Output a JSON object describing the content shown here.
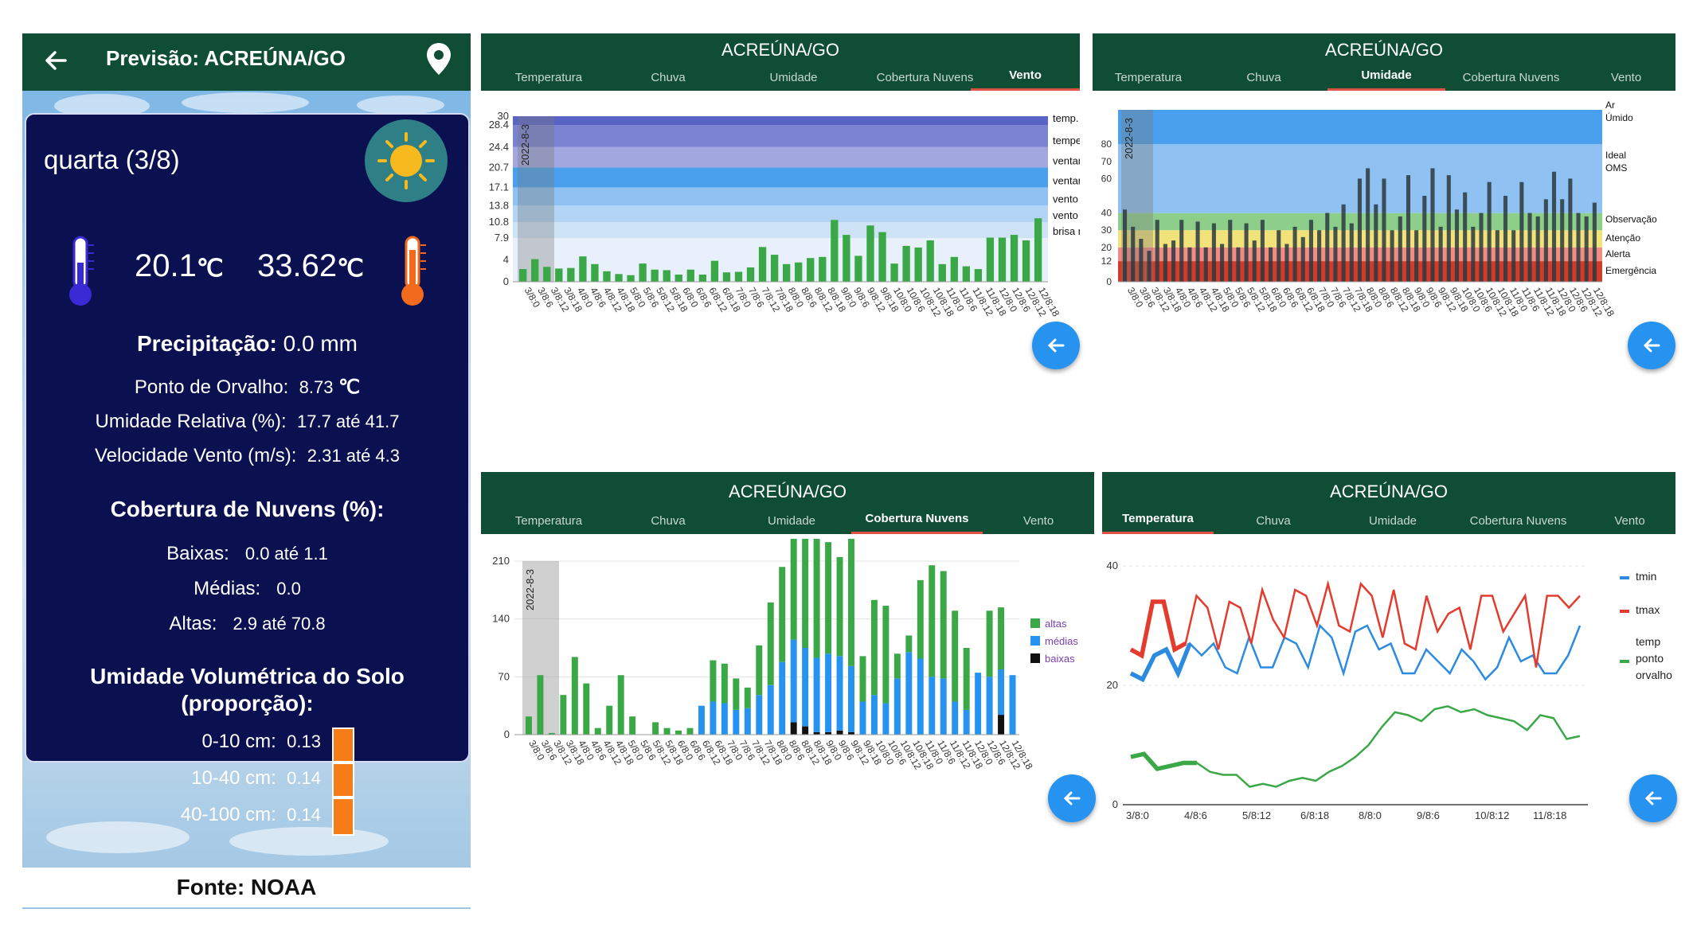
{
  "left": {
    "title": "Previsão: ACREÚNA/GO",
    "day": "quarta (3/8)",
    "tmin": "20.1",
    "tmax": "33.62",
    "temp_unit": "℃",
    "precip_label": "Precipitação:",
    "precip_value": "0.0 mm",
    "dew_label": "Ponto de Orvalho:",
    "dew_value": "8.73",
    "dew_unit": "℃",
    "humidity_label": "Umidade Relativa (%):",
    "humidity_value": "17.7  até  41.7",
    "wind_label": "Velocidade Vento (m/s):",
    "wind_value": "2.31  até  4.3",
    "clouds_title": "Cobertura de Nuvens (%):",
    "low_label": "Baixas:",
    "low_value": "0.0  até  1.1",
    "mid_label": "Médias:",
    "mid_value": "0.0",
    "high_label": "Altas:",
    "high_value": "2.9  até  70.8",
    "soil_title_1": "Umidade Volumétrica do Solo",
    "soil_title_2": "(proporção):",
    "soil": [
      {
        "label": "0-10 cm:",
        "value": "0.13"
      },
      {
        "label": "10-40 cm:",
        "value": "0.14"
      },
      {
        "label": "40-100 cm:",
        "value": "0.14"
      }
    ],
    "source": "Fonte: NOAA"
  },
  "tabs": [
    "Temperatura",
    "Chuva",
    "Umidade",
    "Cobertura Nuvens",
    "Vento"
  ],
  "panel_title": "ACREÚNA/GO",
  "date_marker": "2022-8-3",
  "x_ticks": [
    "3/8:0",
    "3/8:6",
    "3/8:12",
    "3/8:18",
    "4/8:0",
    "4/8:6",
    "4/8:12",
    "4/8:18",
    "5/8:0",
    "5/8:6",
    "5/8:12",
    "5/8:18",
    "6/8:0",
    "6/8:6",
    "6/8:12",
    "6/8:18",
    "7/8:0",
    "7/8:6",
    "7/8:12",
    "7/8:18",
    "8/8:0",
    "8/8:6",
    "8/8:12",
    "8/8:18",
    "9/8:0",
    "9/8:6",
    "9/8:12",
    "9/8:18",
    "10/8:0",
    "10/8:6",
    "10/8:12",
    "10/8:18",
    "11/8:0",
    "11/8:6",
    "11/8:12",
    "11/8:18",
    "12/8:0",
    "12/8:6",
    "12/8:12",
    "12/8:18"
  ],
  "chart_data": [
    {
      "type": "bar",
      "panel": "Vento",
      "active_tab": "Vento",
      "yticks": [
        "0",
        "4",
        "7.9",
        "10.8",
        "13.8",
        "17.1",
        "20.7",
        "24.4",
        "28.4",
        "30"
      ],
      "ylim": [
        0,
        30
      ],
      "bands": [
        {
          "label": "brisa moderada",
          "from": 7.9,
          "to": 10.8,
          "color": "#cfe3f7"
        },
        {
          "label": "vento leve",
          "from": 10.8,
          "to": 13.8,
          "color": "#b3d4f5"
        },
        {
          "label": "vento forte",
          "from": 13.8,
          "to": 17.1,
          "color": "#8fc1f2"
        },
        {
          "label": "ventania",
          "from": 17.1,
          "to": 20.7,
          "color": "#4aa0ec"
        },
        {
          "label": "ventania forte",
          "from": 20.7,
          "to": 24.4,
          "color": "#a2a8df"
        },
        {
          "label": "tempestade",
          "from": 24.4,
          "to": 28.4,
          "color": "#7a83d2"
        },
        {
          "label": "temp. violenta",
          "from": 28.4,
          "to": 30,
          "color": "#5a63c6"
        }
      ],
      "series": [
        {
          "color": "#3aa846",
          "values": [
            2.3,
            4.1,
            2.7,
            2.4,
            2.5,
            4.6,
            3.2,
            1.9,
            1.4,
            1.2,
            3.3,
            2.2,
            2.1,
            1.3,
            2.2,
            1.3,
            3.8,
            1.7,
            1.8,
            2.6,
            6.3,
            4.9,
            3.2,
            3.5,
            4.3,
            4.5,
            11.2,
            8.5,
            4.7,
            10.2,
            9.0,
            3.3,
            6.5,
            6.2,
            7.5,
            3.2,
            4.5,
            2.8,
            2.3,
            8.0,
            8.0,
            8.5,
            7.5,
            11.5
          ]
        }
      ]
    },
    {
      "type": "bar",
      "panel": "Umidade",
      "active_tab": "Umidade",
      "yticks": [
        "0",
        "12",
        "20",
        "30",
        "40",
        "60",
        "70",
        "80"
      ],
      "ylim": [
        0,
        100
      ],
      "bands": [
        {
          "label": "Emergência",
          "from": 0,
          "to": 12,
          "color": "#d23b2a"
        },
        {
          "label": "Alerta",
          "from": 12,
          "to": 20,
          "color": "#f28b83"
        },
        {
          "label": "Atenção",
          "from": 20,
          "to": 30,
          "color": "#f2e27a"
        },
        {
          "label": "Observação",
          "from": 30,
          "to": 40,
          "color": "#8dcf8a"
        },
        {
          "label": "Ideal OMS",
          "from": 40,
          "to": 80,
          "color": "#8fc1f2"
        },
        {
          "label": "Ar Úmido",
          "from": 80,
          "to": 100,
          "color": "#4aa0ec"
        }
      ],
      "series": [
        {
          "color": "#2b3a3f",
          "values": [
            42,
            32,
            25,
            18,
            36,
            22,
            24,
            36,
            20,
            35,
            20,
            34,
            22,
            36,
            20,
            34,
            24,
            36,
            20,
            30,
            22,
            32,
            26,
            36,
            30,
            40,
            32,
            45,
            34,
            60,
            66,
            45,
            60,
            30,
            38,
            62,
            30,
            50,
            66,
            32,
            62,
            42,
            52,
            32,
            40,
            58,
            30,
            50,
            30,
            58,
            40,
            38,
            48,
            64,
            48,
            60,
            40,
            38,
            46
          ]
        }
      ]
    },
    {
      "type": "bar",
      "panel": "Cobertura Nuvens",
      "active_tab": "Cobertura Nuvens",
      "yticks": [
        "0",
        "70",
        "140",
        "210"
      ],
      "ylim": [
        0,
        210
      ],
      "legend": [
        "altas",
        "médias",
        "baixas"
      ],
      "series": [
        {
          "name": "altas",
          "color": "#3aa846",
          "values": [
            22,
            72,
            2,
            48,
            94,
            62,
            8,
            35,
            72,
            22,
            0,
            15,
            8,
            5,
            8,
            0,
            50,
            48,
            38,
            25,
            60,
            100,
            115,
            150,
            175,
            175,
            135,
            120,
            160,
            55,
            115,
            118,
            30,
            20,
            95,
            135,
            130,
            110,
            75,
            0,
            80,
            75,
            0
          ]
        },
        {
          "name": "médias",
          "color": "#2693f0",
          "values": [
            0,
            0,
            0,
            0,
            0,
            0,
            0,
            0,
            0,
            0,
            0,
            0,
            0,
            0,
            0,
            35,
            40,
            38,
            30,
            32,
            48,
            60,
            88,
            100,
            95,
            90,
            95,
            90,
            80,
            40,
            48,
            38,
            68,
            100,
            92,
            70,
            68,
            40,
            30,
            75,
            70,
            55,
            72
          ]
        },
        {
          "name": "baixas",
          "color": "#111111",
          "values": [
            0,
            0,
            0,
            0,
            0,
            0,
            0,
            0,
            0,
            0,
            0,
            0,
            0,
            0,
            0,
            0,
            0,
            0,
            0,
            0,
            0,
            0,
            0,
            15,
            10,
            3,
            3,
            5,
            3,
            0,
            0,
            0,
            0,
            0,
            0,
            0,
            0,
            0,
            0,
            0,
            0,
            24,
            0
          ]
        }
      ]
    },
    {
      "type": "line",
      "panel": "Temperatura",
      "active_tab": "Temperatura",
      "yticks": [
        "0",
        "20",
        "40"
      ],
      "ylim": [
        0,
        40
      ],
      "xticks": [
        "3/8:0",
        "4/8:6",
        "5/8:12",
        "6/8:18",
        "8/8:0",
        "9/8:6",
        "10/8:12",
        "11/8:18"
      ],
      "series": [
        {
          "name": "tmin",
          "color": "#2c8be0",
          "values": [
            22,
            21,
            25,
            26,
            22,
            27,
            25,
            27,
            23,
            22,
            28,
            23,
            23,
            28,
            27,
            23,
            30,
            28,
            22,
            29,
            30,
            26,
            27,
            22,
            22,
            26,
            24,
            22,
            26,
            24,
            21,
            23,
            28,
            24,
            25,
            22,
            22,
            25,
            30
          ]
        },
        {
          "name": "tmax",
          "color": "#e33b2e",
          "values": [
            26,
            25,
            34,
            34,
            26,
            27,
            35,
            33,
            26,
            34,
            33,
            27,
            36,
            31,
            28,
            36,
            35,
            30,
            37,
            30,
            29,
            37,
            35,
            28,
            36,
            27,
            26,
            35,
            29,
            32,
            33,
            26,
            35,
            35,
            29,
            32,
            35,
            23,
            35,
            35,
            33,
            35
          ]
        },
        {
          "name": "temp ponto orvalho",
          "color": "#3aa846",
          "values": [
            8,
            8.5,
            6,
            6.5,
            7,
            7,
            5.5,
            5,
            5,
            3,
            3.5,
            3,
            4,
            4.5,
            4,
            5.5,
            6.5,
            8,
            10,
            13,
            15.5,
            15,
            14,
            16,
            16.5,
            15.5,
            16,
            15,
            14.5,
            14,
            12.5,
            15,
            14.5,
            11,
            11.5
          ]
        }
      ]
    }
  ]
}
